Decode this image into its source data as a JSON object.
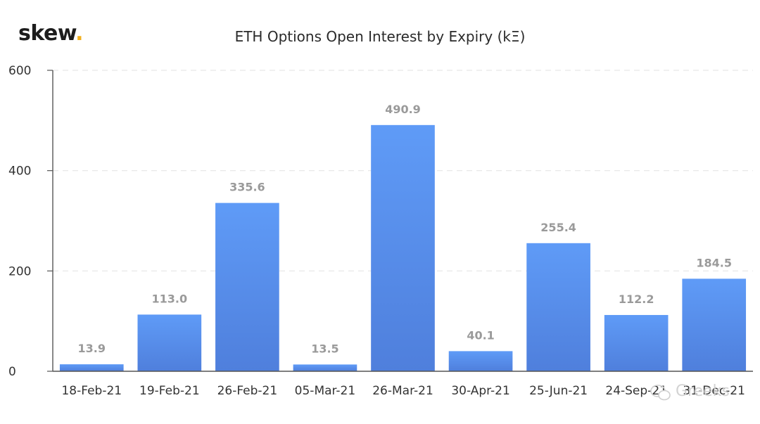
{
  "brand": {
    "name": "skew",
    "dot": "."
  },
  "watermark": "Greeks",
  "colors": {
    "bar_top": "#5f9bf7",
    "bar_bottom": "#4f7fdc",
    "grid": "#e6e6e6",
    "axis": "#555555",
    "label": "#9a9a9a"
  },
  "chart_data": {
    "type": "bar",
    "title": "ETH Options Open Interest by Expiry (kΞ)",
    "xlabel": "",
    "ylabel": "",
    "categories": [
      "18-Feb-21",
      "19-Feb-21",
      "26-Feb-21",
      "05-Mar-21",
      "26-Mar-21",
      "30-Apr-21",
      "25-Jun-21",
      "24-Sep-21",
      "31-Dec-21"
    ],
    "values": [
      13.9,
      113.0,
      335.6,
      13.5,
      490.9,
      40.1,
      255.4,
      112.2,
      184.5
    ],
    "data_labels": [
      "13.9",
      "113.0",
      "335.6",
      "13.5",
      "490.9",
      "40.1",
      "255.4",
      "112.2",
      "184.5"
    ],
    "ylim": [
      0,
      600
    ],
    "yticks": [
      0,
      200,
      400,
      600
    ],
    "grid": true,
    "legend": "none"
  }
}
